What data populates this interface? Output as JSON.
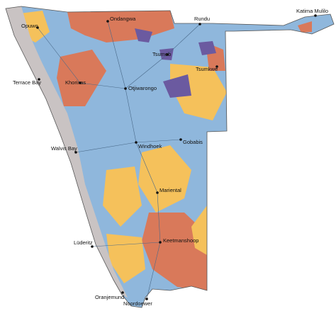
{
  "towns": [
    {
      "name": "Opuwo"
    },
    {
      "name": "Ondangwa"
    },
    {
      "name": "Rundu"
    },
    {
      "name": "Katima Mulilo"
    },
    {
      "name": "Tsumeb"
    },
    {
      "name": "Tsumkwe"
    },
    {
      "name": "Terrace Bay"
    },
    {
      "name": "Khorixas"
    },
    {
      "name": "Otjiwarongo"
    },
    {
      "name": "Windhoek"
    },
    {
      "name": "Gobabis"
    },
    {
      "name": "Walvis Bay"
    },
    {
      "name": "Mariental"
    },
    {
      "name": "Keetmanshoop"
    },
    {
      "name": "Lüderitz"
    },
    {
      "name": "Oranjemund"
    },
    {
      "name": "Noordoewer"
    }
  ]
}
